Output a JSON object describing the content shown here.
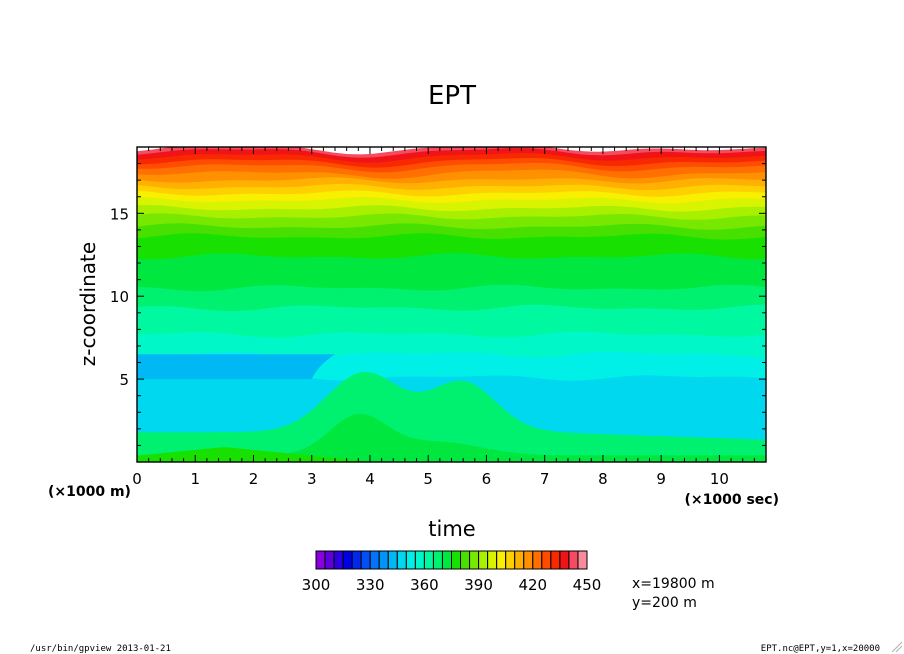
{
  "chart_data": {
    "type": "contour",
    "title": "EPT",
    "xlabel": "time",
    "ylabel": "z-coordinate",
    "x_unit": "(×1000 sec)",
    "y_unit": "(×1000 m)",
    "xlim": [
      0,
      10.8
    ],
    "ylim": [
      0,
      19.0
    ],
    "x_ticks": [
      "0",
      "1",
      "2",
      "3",
      "4",
      "5",
      "6",
      "7",
      "8",
      "9",
      "10"
    ],
    "y_ticks": [
      "5",
      "10",
      "15"
    ],
    "colorbar": {
      "min": 300,
      "max": 450,
      "step": 5,
      "tick_labels": [
        "300",
        "330",
        "360",
        "390",
        "420",
        "450"
      ]
    },
    "contours": [
      {
        "level": 440,
        "z": 18.9
      },
      {
        "level": 435,
        "z": 18.7
      },
      {
        "level": 430,
        "z": 18.4
      },
      {
        "level": 425,
        "z": 18.1
      },
      {
        "level": 420,
        "z": 17.8
      },
      {
        "level": 415,
        "z": 17.4
      },
      {
        "level": 410,
        "z": 17.0
      },
      {
        "level": 405,
        "z": 16.6
      },
      {
        "level": 400,
        "z": 16.2
      },
      {
        "level": 395,
        "z": 15.8
      },
      {
        "level": 390,
        "z": 15.3
      },
      {
        "level": 385,
        "z": 14.8
      },
      {
        "level": 380,
        "z": 14.2
      },
      {
        "level": 375,
        "z": 13.6
      },
      {
        "level": 370,
        "z": 12.4
      },
      {
        "level": 365,
        "z": 10.5
      },
      {
        "level": 360,
        "z": 9.3
      },
      {
        "level": 355,
        "z": 7.7
      },
      {
        "level": 350,
        "z": 6.5
      },
      {
        "level": 345,
        "z": 5.1
      }
    ],
    "low_layer_z_range": [
      5.0,
      6.5
    ],
    "surface_levels": [
      {
        "level": 365,
        "z": 2.0
      },
      {
        "level": 370,
        "z": 0.8
      },
      {
        "level": 375,
        "z": 0.3
      }
    ],
    "annotations": [
      "x=19800 m",
      "y=200 m"
    ]
  },
  "footer": {
    "left": "/usr/bin/gpview  2013-01-21",
    "right": "EPT.nc@EPT,y=1,x=20000"
  },
  "colors": {
    "palette": [
      "#8800dd",
      "#5c00dc",
      "#2a00e0",
      "#0000e6",
      "#0028ee",
      "#0050f6",
      "#0074fa",
      "#0096f8",
      "#00b8f4",
      "#00d8f0",
      "#00f0e8",
      "#00f8c8",
      "#00f8a0",
      "#00f070",
      "#00e840",
      "#18e000",
      "#48e000",
      "#78e800",
      "#a8f000",
      "#d8f400",
      "#f8f000",
      "#ffd000",
      "#ffb000",
      "#ff9000",
      "#ff7000",
      "#ff4c00",
      "#f82800",
      "#f01418",
      "#f44c60",
      "#f88c9c"
    ]
  }
}
